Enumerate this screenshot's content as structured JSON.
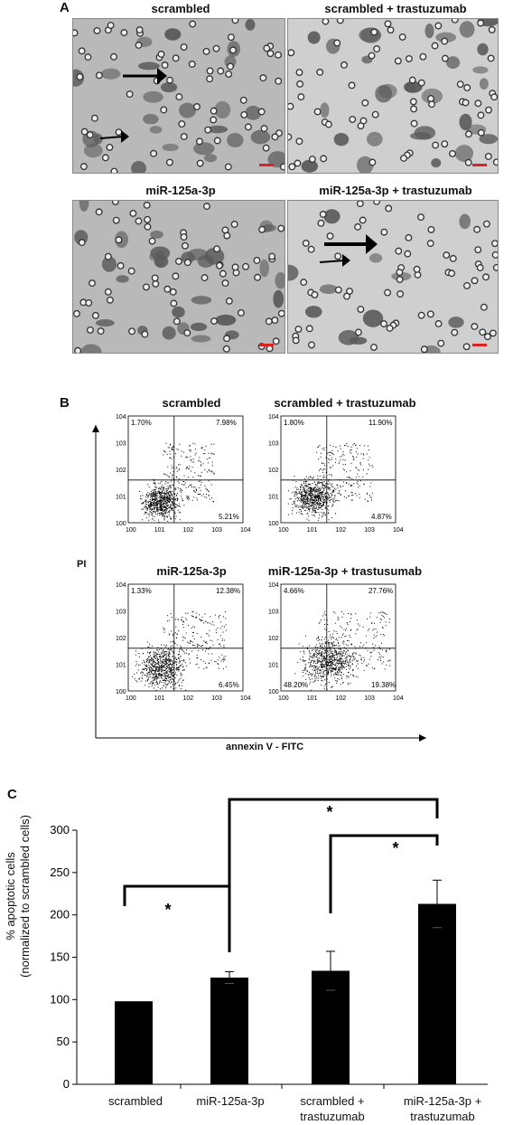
{
  "panelA": {
    "letter": "A",
    "images": [
      {
        "title": "scrambled"
      },
      {
        "title": "scrambled + trastuzumab"
      },
      {
        "title": "miR-125a-3p"
      },
      {
        "title": "miR-125a-3p + trastuzumab"
      }
    ]
  },
  "panelB": {
    "letter": "B",
    "ylabel": "PI",
    "xlabel": "annexin V  - FITC",
    "tick_exponents": [
      "0",
      "1",
      "2",
      "3",
      "4"
    ],
    "plots": [
      {
        "title": "scrambled",
        "ul": "1.70%",
        "ur": "7.98%",
        "ll": "",
        "lr": "5.21%"
      },
      {
        "title": "scrambled + trastuzumab",
        "ul": "1.80%",
        "ur": "11.90%",
        "ll": "",
        "lr": "4.87%"
      },
      {
        "title": "miR-125a-3p",
        "ul": "1.33%",
        "ur": "12.38%",
        "ll": "",
        "lr": "6.45%"
      },
      {
        "title": "miR-125a-3p + trastusumab",
        "ul": "4.66%",
        "ur": "27.76%",
        "ll": "48.20%",
        "lr": "19.38%"
      }
    ]
  },
  "panelC": {
    "letter": "C",
    "ylabel_line1": "% apoptotic cells",
    "ylabel_line2": "(normalized to scrambled cells)",
    "significance": "*"
  },
  "chart_data": {
    "type": "bar",
    "categories": [
      "scrambled",
      "miR-125a-3p",
      "scrambled + trastuzumab",
      "miR-125a-3p + trastuzumab"
    ],
    "category_lines": [
      [
        "scrambled"
      ],
      [
        "miR-125a-3p"
      ],
      [
        "scrambled +",
        "trastuzumab"
      ],
      [
        "miR-125a-3p +",
        "trastuzumab"
      ]
    ],
    "values": [
      98,
      126,
      134,
      213
    ],
    "errors": [
      0,
      7,
      23,
      28
    ],
    "ylim": [
      0,
      300
    ],
    "yticks": [
      0,
      50,
      100,
      150,
      200,
      250,
      300
    ],
    "ylabel": "% apoptotic cells (normalized to scrambled cells)",
    "bar_color": "#000000",
    "comparisons": [
      {
        "from": 0,
        "to": 1,
        "label": "*"
      },
      {
        "from": 1,
        "to": 3,
        "label": "*"
      },
      {
        "from": 2,
        "to": 3,
        "label": "*"
      }
    ]
  }
}
